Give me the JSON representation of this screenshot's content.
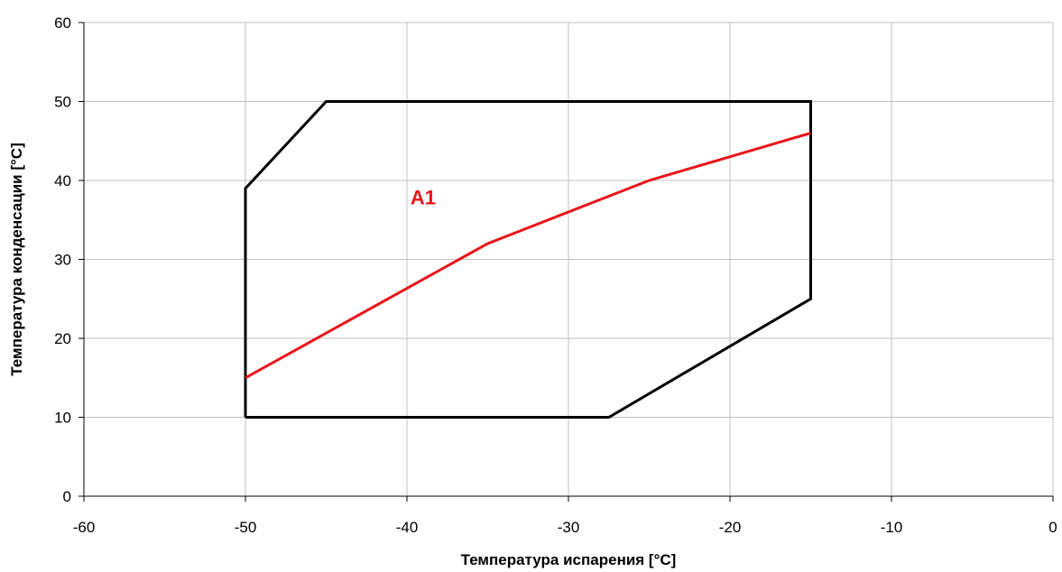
{
  "chart_data": {
    "type": "line",
    "title": "",
    "xlabel": "Температура испарения [°C]",
    "ylabel": "Температура конденсации [°C]",
    "xlim": [
      -60,
      0
    ],
    "ylim": [
      0,
      60
    ],
    "xticks": [
      -60,
      -50,
      -40,
      -30,
      -20,
      -10,
      0
    ],
    "yticks": [
      0,
      10,
      20,
      30,
      40,
      50,
      60
    ],
    "xtick_labels": [
      "-60",
      "-50",
      "-40",
      "-30",
      "-20",
      "-10",
      "0"
    ],
    "ytick_labels": [
      "0",
      "10",
      "20",
      "30",
      "40",
      "50",
      "60"
    ],
    "grid": true,
    "legend": "none",
    "series": [
      {
        "color": "#000000",
        "closed": true,
        "points": [
          [
            -50,
            10
          ],
          [
            -27.5,
            10
          ],
          [
            -15,
            25
          ],
          [
            -15,
            50
          ],
          [
            -45,
            50
          ],
          [
            -50,
            39
          ],
          [
            -50,
            10
          ]
        ]
      },
      {
        "color": "#e8141b",
        "closed": false,
        "points": [
          [
            -50,
            15
          ],
          [
            -35,
            32
          ],
          [
            -25,
            40
          ],
          [
            -15,
            46
          ]
        ]
      }
    ],
    "annotations": [
      {
        "text": "A1",
        "x": -39,
        "y": 37,
        "color": "#e8141b"
      }
    ]
  }
}
